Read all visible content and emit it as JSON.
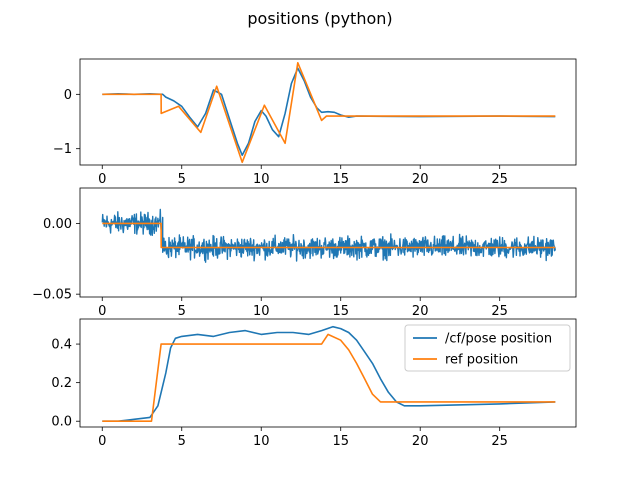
{
  "figure": {
    "title": "positions (python)"
  },
  "colors": {
    "pose": "#1f77b4",
    "ref": "#ff7f0e"
  },
  "chart_data": [
    {
      "type": "line",
      "xlim": [
        -1.4,
        29.8
      ],
      "ylim": [
        -1.3,
        0.65
      ],
      "xticks": [
        0,
        5,
        10,
        15,
        20,
        25
      ],
      "yticks": [
        -1,
        0
      ],
      "series": [
        {
          "key": "pose",
          "x": [
            0,
            1,
            2,
            3,
            3.8,
            4,
            4.5,
            5,
            5.5,
            6,
            6.5,
            7,
            7.5,
            8,
            8.5,
            8.8,
            9.2,
            9.6,
            10,
            10.3,
            10.7,
            11.1,
            11.5,
            11.9,
            12.3,
            12.7,
            13.1,
            13.5,
            13.8,
            14.2,
            14.6,
            15,
            15.5,
            16,
            20,
            25,
            28.5
          ],
          "y": [
            0,
            0.01,
            0,
            0.01,
            0.0,
            -0.05,
            -0.12,
            -0.22,
            -0.42,
            -0.6,
            -0.35,
            0.08,
            0.0,
            -0.45,
            -0.9,
            -1.12,
            -0.9,
            -0.5,
            -0.3,
            -0.4,
            -0.65,
            -0.78,
            -0.35,
            0.2,
            0.48,
            0.25,
            -0.05,
            -0.25,
            -0.33,
            -0.32,
            -0.33,
            -0.38,
            -0.42,
            -0.4,
            -0.41,
            -0.4,
            -0.41
          ]
        },
        {
          "key": "ref",
          "x": [
            0,
            3.7,
            3.71,
            4.8,
            6.2,
            7.2,
            8.8,
            10.2,
            11.5,
            12.3,
            13.8,
            14.1,
            28.5
          ],
          "y": [
            0,
            0,
            -0.35,
            -0.22,
            -0.7,
            0.15,
            -1.25,
            -0.2,
            -0.9,
            0.58,
            -0.48,
            -0.4,
            -0.4
          ]
        }
      ]
    },
    {
      "type": "line",
      "xlim": [
        -1.4,
        29.8
      ],
      "ylim": [
        -0.052,
        0.025
      ],
      "xticks": [
        0,
        5,
        10,
        15,
        20,
        25
      ],
      "yticks": [
        0.0,
        -0.05
      ],
      "series": [
        {
          "key": "pose",
          "noise": {
            "segments": [
              {
                "x0": 0,
                "x1": 3.8,
                "mean": 0.0,
                "amp": 0.011
              },
              {
                "x0": 3.8,
                "x1": 28.5,
                "mean": -0.017,
                "amp": 0.011
              }
            ]
          }
        },
        {
          "key": "ref",
          "x": [
            0,
            3.7,
            3.71,
            28.5
          ],
          "y": [
            0,
            0,
            -0.017,
            -0.017
          ]
        }
      ]
    },
    {
      "type": "line",
      "xlim": [
        -1.4,
        29.8
      ],
      "ylim": [
        -0.03,
        0.53
      ],
      "xticks": [
        0,
        5,
        10,
        15,
        20,
        25
      ],
      "yticks": [
        0.0,
        0.2,
        0.4
      ],
      "legend": {
        "position": "top-right"
      },
      "series": [
        {
          "key": "pose",
          "name": "/cf/pose position",
          "x": [
            0,
            1,
            2,
            3,
            3.5,
            4,
            4.3,
            4.6,
            5,
            6,
            7,
            8,
            9,
            10,
            11,
            12,
            13,
            13.8,
            14.5,
            15,
            15.5,
            16,
            16.5,
            17,
            17.5,
            18,
            18.5,
            19,
            20,
            25,
            28.5
          ],
          "y": [
            0,
            0.0,
            0.01,
            0.02,
            0.08,
            0.25,
            0.38,
            0.43,
            0.44,
            0.45,
            0.44,
            0.46,
            0.47,
            0.45,
            0.46,
            0.46,
            0.45,
            0.47,
            0.49,
            0.48,
            0.46,
            0.42,
            0.36,
            0.3,
            0.22,
            0.15,
            0.1,
            0.08,
            0.08,
            0.09,
            0.1
          ]
        },
        {
          "key": "ref",
          "name": "ref position",
          "x": [
            0,
            3.1,
            3.7,
            13.8,
            14.2,
            15,
            15.5,
            16,
            16.5,
            17,
            17.5,
            28.5
          ],
          "y": [
            0,
            0,
            0.4,
            0.4,
            0.45,
            0.42,
            0.37,
            0.3,
            0.22,
            0.14,
            0.1,
            0.1
          ]
        }
      ]
    }
  ]
}
